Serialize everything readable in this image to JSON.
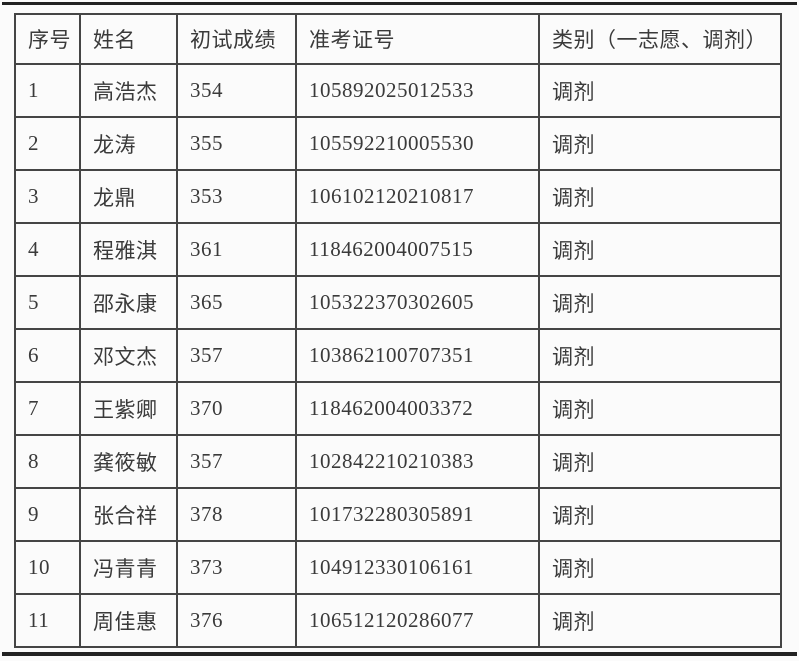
{
  "table": {
    "headers": [
      "序号",
      "姓名",
      "初试成绩",
      "准考证号",
      "类别（一志愿、调剂）"
    ],
    "rows": [
      [
        "1",
        "高浩杰",
        "354",
        "105892025012533",
        "调剂"
      ],
      [
        "2",
        "龙涛",
        "355",
        "105592210005530",
        "调剂"
      ],
      [
        "3",
        "龙鼎",
        "353",
        "106102120210817",
        "调剂"
      ],
      [
        "4",
        "程雅淇",
        "361",
        "118462004007515",
        "调剂"
      ],
      [
        "5",
        "邵永康",
        "365",
        "105322370302605",
        "调剂"
      ],
      [
        "6",
        "邓文杰",
        "357",
        "103862100707351",
        "调剂"
      ],
      [
        "7",
        "王紫卿",
        "370",
        "118462004003372",
        "调剂"
      ],
      [
        "8",
        "龚筱敏",
        "357",
        "102842210210383",
        "调剂"
      ],
      [
        "9",
        "张合祥",
        "378",
        "101732280305891",
        "调剂"
      ],
      [
        "10",
        "冯青青",
        "373",
        "104912330106161",
        "调剂"
      ],
      [
        "11",
        "周佳惠",
        "376",
        "106512120286077",
        "调剂"
      ]
    ]
  },
  "colors": {
    "page_background": "#fbfbfb",
    "table_border": "#454545",
    "text": "#3a3a3a",
    "edge_rule": "#232323"
  }
}
